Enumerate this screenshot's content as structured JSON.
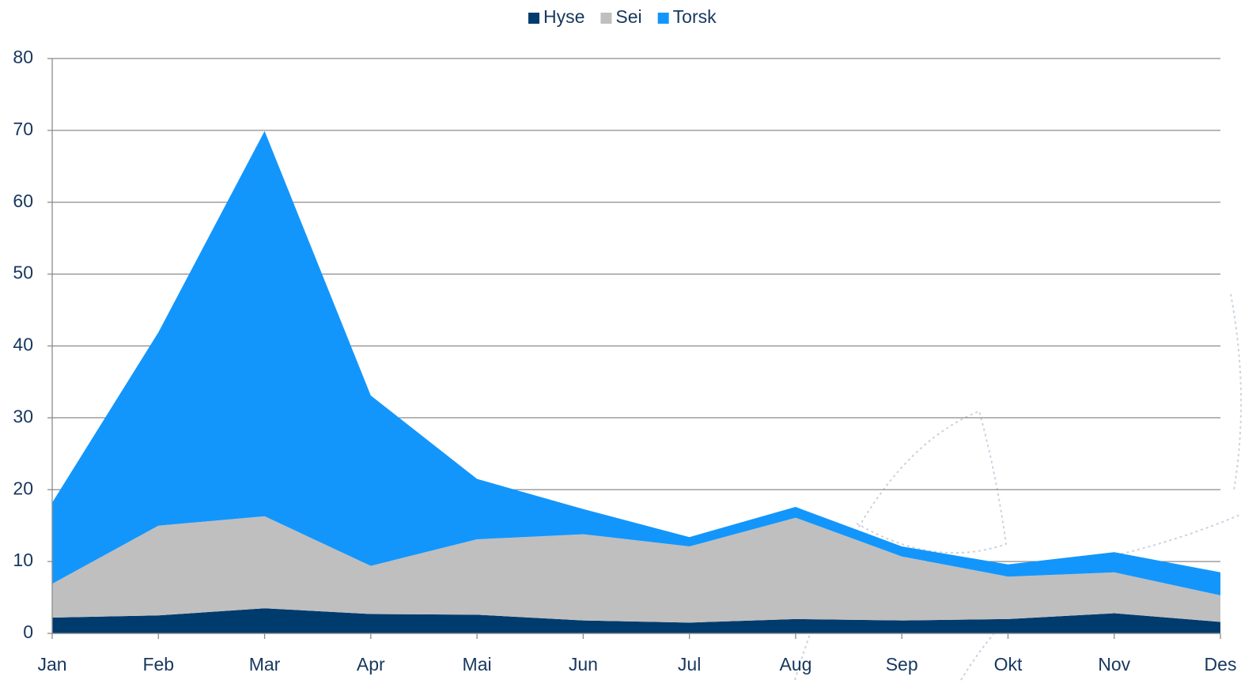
{
  "chart_data": {
    "type": "stacked_area",
    "categories": [
      "Jan",
      "Feb",
      "Mar",
      "Apr",
      "Mai",
      "Jun",
      "Jul",
      "Aug",
      "Sep",
      "Okt",
      "Nov",
      "Des"
    ],
    "series": [
      {
        "name": "Hyse",
        "color": "#003b6e",
        "values": [
          2.2,
          2.5,
          3.5,
          2.7,
          2.6,
          1.8,
          1.5,
          2.0,
          1.8,
          2.0,
          2.8,
          1.6
        ]
      },
      {
        "name": "Sei",
        "color": "#bfbfbf",
        "values": [
          4.7,
          12.5,
          12.8,
          6.7,
          10.5,
          12.0,
          10.6,
          14.1,
          8.9,
          5.9,
          5.7,
          3.7
        ]
      },
      {
        "name": "Torsk",
        "color": "#1396fb",
        "values": [
          11.3,
          26.9,
          53.6,
          23.7,
          8.4,
          3.5,
          1.3,
          1.5,
          1.4,
          1.7,
          2.8,
          3.2
        ]
      }
    ],
    "ylim": [
      0,
      80
    ],
    "yticks": [
      0,
      10,
      20,
      30,
      40,
      50,
      60,
      70,
      80
    ],
    "grid": true,
    "legend": "top"
  }
}
